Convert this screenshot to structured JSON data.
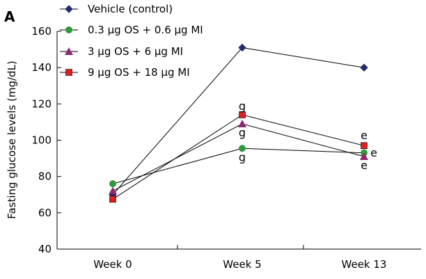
{
  "chart_data": {
    "type": "line",
    "panel_label": "A",
    "title": "",
    "xlabel": "",
    "ylabel": "Fasting glucose levels (mg/dL)",
    "ylim": [
      40,
      160
    ],
    "yticks": [
      40,
      60,
      80,
      100,
      120,
      140,
      160
    ],
    "categories": [
      "Week 0",
      "Week 5",
      "Week 13"
    ],
    "grid": false,
    "legend_position": "top-left",
    "series": [
      {
        "name": "Vehicle (control)",
        "marker": "diamond",
        "color": "#1f2d6b",
        "values": [
          70,
          151,
          140
        ]
      },
      {
        "name": "0.3 μg OS + 0.6 μg MI",
        "marker": "circle",
        "color": "#2e9a3a",
        "values": [
          76,
          95.5,
          93
        ]
      },
      {
        "name": "3 μg OS + 6 μg MI",
        "marker": "triangle",
        "color": "#8b2a6e",
        "values": [
          72,
          109,
          91
        ]
      },
      {
        "name": "9 μg OS + 18 μg MI",
        "marker": "square",
        "color": "#e02020",
        "values": [
          67.5,
          114,
          97
        ]
      }
    ],
    "annotations": [
      {
        "text": "g",
        "category": "Week 5",
        "y": 118.5
      },
      {
        "text": "g",
        "category": "Week 5",
        "y": 104
      },
      {
        "text": "g",
        "category": "Week 5",
        "y": 90.5
      },
      {
        "text": "e",
        "category": "Week 13",
        "y": 102.5
      },
      {
        "text": "e",
        "category": "Week 13",
        "y": 93
      },
      {
        "text": "e",
        "category": "Week 13",
        "y": 86
      }
    ]
  }
}
